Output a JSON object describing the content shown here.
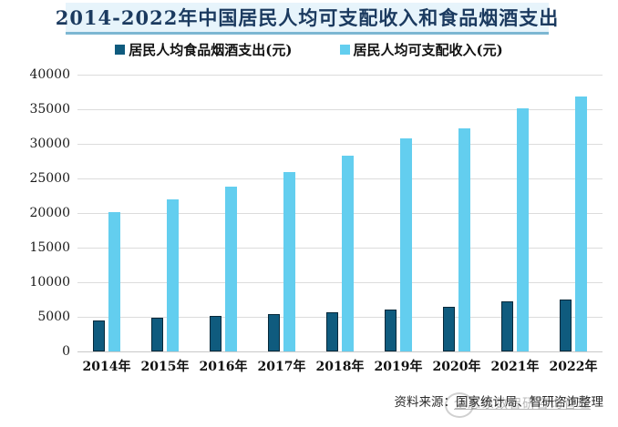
{
  "title": "2014-2022年中国居民人均可支配收入和食品烟酒支出",
  "legend": {
    "items": [
      {
        "label": "居民人均食品烟酒支出(元)",
        "color": "#0f5b7e"
      },
      {
        "label": "居民人均可支配收入(元)",
        "color": "#63ceef"
      }
    ]
  },
  "source_note": "资料来源：国家统计局、智研咨询整理",
  "watermark_text": "全息象数智研咨询管理",
  "colors": {
    "title_text": "#1b3a5f",
    "title_band_bg": "#e7f4fb",
    "bar_dark": "#0f5b7e",
    "bar_light": "#63ceef",
    "gridline": "#dcdcdc"
  },
  "chart_data": {
    "type": "bar",
    "title": "2014-2022年中国居民人均可支配收入和食品烟酒支出",
    "categories": [
      "2014年",
      "2015年",
      "2016年",
      "2017年",
      "2018年",
      "2019年",
      "2020年",
      "2021年",
      "2022年"
    ],
    "series": [
      {
        "key": "food-tobacco-liquor-expenditure",
        "name": "居民人均食品烟酒支出(元)",
        "color": "#0f5b7e",
        "values": [
          4494,
          4814,
          5151,
          5374,
          5631,
          6084,
          6397,
          7178,
          7481
        ]
      },
      {
        "key": "disposable-income",
        "name": "居民人均可支配收入(元)",
        "color": "#63ceef",
        "values": [
          20167,
          21966,
          23821,
          25974,
          28228,
          30733,
          32189,
          35128,
          36883
        ]
      }
    ],
    "xlabel": "",
    "ylabel": "",
    "ylim": [
      0,
      40000
    ],
    "ytick_step": 5000,
    "yticks": [
      0,
      5000,
      10000,
      15000,
      20000,
      25000,
      30000,
      35000,
      40000
    ],
    "grid": true,
    "legend_position": "top"
  }
}
